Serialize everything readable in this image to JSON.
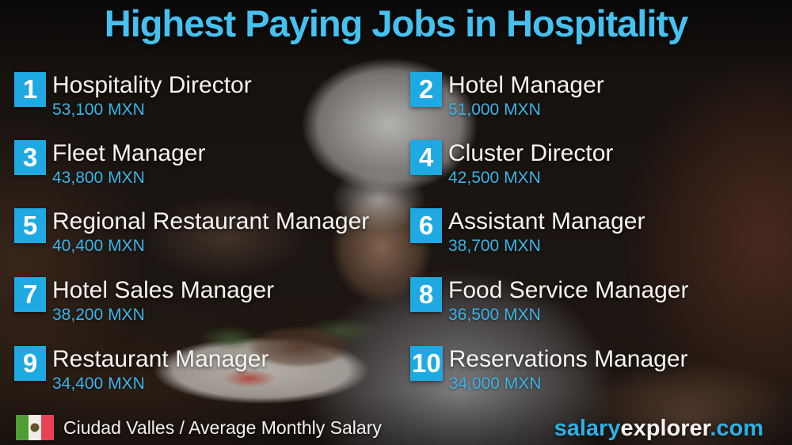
{
  "title": "Highest Paying Jobs in Hospitality",
  "colors": {
    "title_text": "#45c1f0",
    "badge": "#1fa9e2",
    "salary_text": "#3ab5e8",
    "site_cyan": "#2bb1e6",
    "flag_green": "#4f9e33",
    "flag_red": "#ea4157"
  },
  "jobs": [
    {
      "rank": "1",
      "title": "Hospitality Director",
      "salary": "53,100 MXN"
    },
    {
      "rank": "2",
      "title": "Hotel Manager",
      "salary": "51,000 MXN"
    },
    {
      "rank": "3",
      "title": "Fleet Manager",
      "salary": "43,800 MXN"
    },
    {
      "rank": "4",
      "title": "Cluster Director",
      "salary": "42,500 MXN"
    },
    {
      "rank": "5",
      "title": "Regional Restaurant Manager",
      "salary": "40,400 MXN"
    },
    {
      "rank": "6",
      "title": "Assistant Manager",
      "salary": "38,700 MXN"
    },
    {
      "rank": "7",
      "title": "Hotel Sales Manager",
      "salary": "38,200 MXN"
    },
    {
      "rank": "8",
      "title": "Food Service Manager",
      "salary": "36,500 MXN"
    },
    {
      "rank": "9",
      "title": "Restaurant Manager",
      "salary": "34,400 MXN"
    },
    {
      "rank": "10",
      "title": "Reservations Manager",
      "salary": "34,000 MXN"
    }
  ],
  "footer": {
    "flag_icon": "mexico-flag-icon",
    "location_line": "Ciudad Valles / Average Monthly Salary",
    "site_part1": "salary",
    "site_part2": "explorer",
    "site_part3": ".com"
  },
  "chart_data": {
    "type": "table",
    "title": "Highest Paying Jobs in Hospitality",
    "subtitle": "Ciudad Valles / Average Monthly Salary",
    "columns": [
      "rank",
      "job_title",
      "average_monthly_salary_mxn"
    ],
    "categories": [
      "Hospitality Director",
      "Hotel Manager",
      "Fleet Manager",
      "Cluster Director",
      "Regional Restaurant Manager",
      "Assistant Manager",
      "Hotel Sales Manager",
      "Food Service Manager",
      "Restaurant Manager",
      "Reservations Manager"
    ],
    "values": [
      53100,
      51000,
      43800,
      42500,
      40400,
      38700,
      38200,
      36500,
      34400,
      34000
    ],
    "unit": "MXN",
    "source": "salaryexplorer.com"
  }
}
